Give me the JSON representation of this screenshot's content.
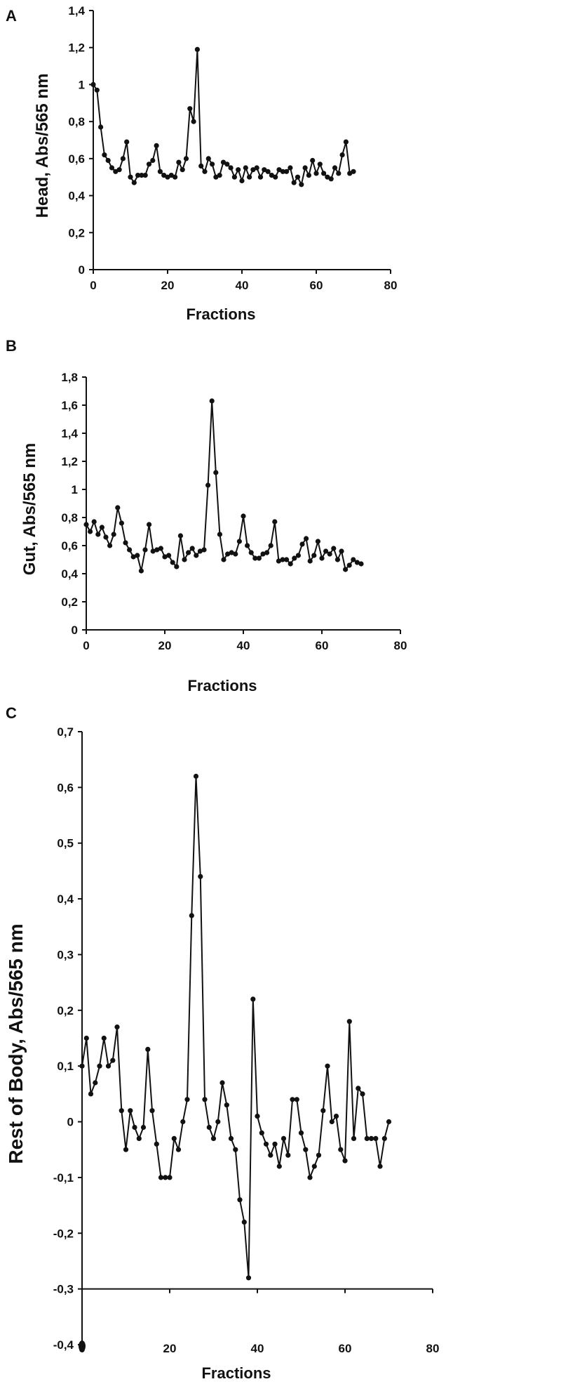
{
  "chart_data": [
    {
      "type": "line",
      "panel": "A",
      "xlabel": "Fractions",
      "ylabel": "Head, Abs/565 nm",
      "xlim": [
        0,
        80
      ],
      "ylim": [
        0,
        1.4
      ],
      "xticks": [
        0,
        20,
        40,
        60,
        80
      ],
      "yticks": [
        0,
        0.2,
        0.4,
        0.6,
        0.8,
        1,
        1.2,
        1.4
      ],
      "yticklabels": [
        "0",
        "0,2",
        "0,4",
        "0,6",
        "0,8",
        "1",
        "1,2",
        "1,4"
      ],
      "grid": false,
      "series": [
        {
          "x": [
            0,
            1,
            2,
            3,
            4,
            5,
            6,
            7,
            8,
            9,
            10,
            11,
            12,
            13,
            14,
            15,
            16,
            17,
            18,
            19,
            20,
            21,
            22,
            23,
            24,
            25,
            26,
            27,
            28,
            29,
            30,
            31,
            32,
            33,
            34,
            35,
            36,
            37,
            38,
            39,
            40,
            41,
            42,
            43,
            44,
            45,
            46,
            47,
            48,
            49,
            50,
            51,
            52,
            53,
            54,
            55,
            56,
            57,
            58,
            59,
            60,
            61,
            62,
            63,
            64,
            65,
            66,
            67,
            68,
            69,
            70
          ],
          "values": [
            1.0,
            0.97,
            0.77,
            0.62,
            0.59,
            0.55,
            0.53,
            0.54,
            0.6,
            0.69,
            0.5,
            0.47,
            0.51,
            0.51,
            0.51,
            0.57,
            0.59,
            0.67,
            0.53,
            0.51,
            0.5,
            0.51,
            0.5,
            0.58,
            0.54,
            0.6,
            0.87,
            0.8,
            1.19,
            0.56,
            0.53,
            0.6,
            0.57,
            0.5,
            0.51,
            0.58,
            0.57,
            0.55,
            0.5,
            0.54,
            0.48,
            0.55,
            0.5,
            0.54,
            0.55,
            0.5,
            0.54,
            0.53,
            0.51,
            0.5,
            0.54,
            0.53,
            0.53,
            0.55,
            0.47,
            0.5,
            0.46,
            0.55,
            0.51,
            0.59,
            0.52,
            0.57,
            0.52,
            0.5,
            0.49,
            0.55,
            0.52,
            0.62,
            0.69,
            0.52,
            0.53
          ]
        }
      ]
    },
    {
      "type": "line",
      "panel": "B",
      "xlabel": "Fractions",
      "ylabel": "Gut, Abs/565 nm",
      "xlim": [
        0,
        80
      ],
      "ylim": [
        0,
        1.8
      ],
      "xticks": [
        0,
        20,
        40,
        60,
        80
      ],
      "yticks": [
        0,
        0.2,
        0.4,
        0.6,
        0.8,
        1,
        1.2,
        1.4,
        1.6,
        1.8
      ],
      "yticklabels": [
        "0",
        "0,2",
        "0,4",
        "0,6",
        "0,8",
        "1",
        "1,2",
        "1,4",
        "1,6",
        "1,8"
      ],
      "grid": false,
      "series": [
        {
          "x": [
            0,
            1,
            2,
            3,
            4,
            5,
            6,
            7,
            8,
            9,
            10,
            11,
            12,
            13,
            14,
            15,
            16,
            17,
            18,
            19,
            20,
            21,
            22,
            23,
            24,
            25,
            26,
            27,
            28,
            29,
            30,
            31,
            32,
            33,
            34,
            35,
            36,
            37,
            38,
            39,
            40,
            41,
            42,
            43,
            44,
            45,
            46,
            47,
            48,
            49,
            50,
            51,
            52,
            53,
            54,
            55,
            56,
            57,
            58,
            59,
            60,
            61,
            62,
            63,
            64,
            65,
            66,
            67,
            68,
            69,
            70
          ],
          "values": [
            0.75,
            0.7,
            0.77,
            0.68,
            0.73,
            0.66,
            0.6,
            0.68,
            0.87,
            0.76,
            0.62,
            0.57,
            0.52,
            0.53,
            0.42,
            0.57,
            0.75,
            0.56,
            0.57,
            0.58,
            0.52,
            0.53,
            0.48,
            0.45,
            0.67,
            0.5,
            0.55,
            0.58,
            0.53,
            0.56,
            0.57,
            1.03,
            1.63,
            1.12,
            0.68,
            0.5,
            0.54,
            0.55,
            0.54,
            0.63,
            0.81,
            0.6,
            0.55,
            0.51,
            0.51,
            0.54,
            0.55,
            0.6,
            0.77,
            0.49,
            0.5,
            0.5,
            0.47,
            0.51,
            0.53,
            0.61,
            0.65,
            0.49,
            0.53,
            0.63,
            0.51,
            0.56,
            0.54,
            0.58,
            0.5,
            0.56,
            0.43,
            0.46,
            0.5,
            0.48,
            0.47
          ]
        }
      ]
    },
    {
      "type": "line",
      "panel": "C",
      "xlabel": "Fractions",
      "ylabel": "Rest of Body, Abs/565 nm",
      "xlim": [
        0,
        80
      ],
      "ylim": [
        -0.4,
        0.7
      ],
      "xticks": [
        0,
        20,
        40,
        60,
        80
      ],
      "yticks": [
        -0.4,
        -0.3,
        -0.2,
        -0.1,
        0,
        0.1,
        0.2,
        0.3,
        0.4,
        0.5,
        0.6,
        0.7
      ],
      "yticklabels": [
        "-0,4",
        "-0,3",
        "-0,2",
        "-0,1",
        "0",
        "0,1",
        "0,2",
        "0,3",
        "0,4",
        "0,5",
        "0,6",
        "0,7"
      ],
      "grid": false,
      "series": [
        {
          "x": [
            0,
            1,
            2,
            3,
            4,
            5,
            6,
            7,
            8,
            9,
            10,
            11,
            12,
            13,
            14,
            15,
            16,
            17,
            18,
            19,
            20,
            21,
            22,
            23,
            24,
            25,
            26,
            27,
            28,
            29,
            30,
            31,
            32,
            33,
            34,
            35,
            36,
            37,
            38,
            39,
            40,
            41,
            42,
            43,
            44,
            45,
            46,
            47,
            48,
            49,
            50,
            51,
            52,
            53,
            54,
            55,
            56,
            57,
            58,
            59,
            60,
            61,
            62,
            63,
            64,
            65,
            66,
            67,
            68,
            69,
            70
          ],
          "values": [
            0.1,
            0.15,
            0.05,
            0.07,
            0.1,
            0.15,
            0.1,
            0.11,
            0.17,
            0.02,
            -0.05,
            0.02,
            -0.01,
            -0.03,
            -0.01,
            0.13,
            0.02,
            -0.04,
            -0.1,
            -0.1,
            -0.1,
            -0.03,
            -0.05,
            0.0,
            0.04,
            0.37,
            0.62,
            0.44,
            0.04,
            -0.01,
            -0.03,
            0.0,
            0.07,
            0.03,
            -0.03,
            -0.05,
            -0.14,
            -0.18,
            -0.28,
            0.22,
            0.01,
            -0.02,
            -0.04,
            -0.06,
            -0.04,
            -0.08,
            -0.03,
            -0.06,
            0.04,
            0.04,
            -0.02,
            -0.05,
            -0.1,
            -0.08,
            -0.06,
            0.02,
            0.1,
            0.0,
            0.01,
            -0.05,
            -0.07,
            0.18,
            -0.03,
            0.06,
            0.05,
            -0.03,
            -0.03,
            -0.03,
            -0.08,
            -0.03,
            0.0
          ]
        }
      ]
    }
  ]
}
